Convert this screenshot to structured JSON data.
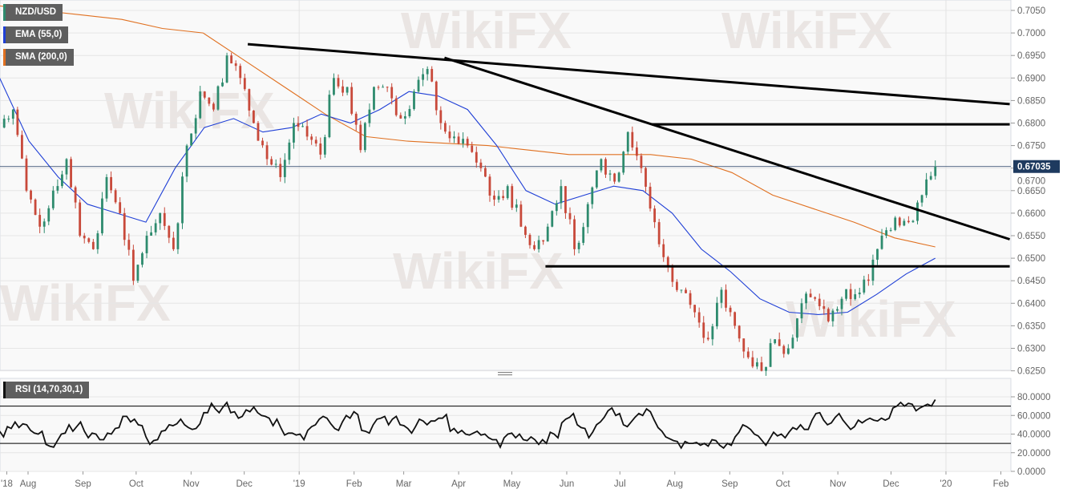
{
  "legend": {
    "symbol": {
      "label": "NZD/USD",
      "color": "#2e8b6e"
    },
    "ema": {
      "label": "EMA (55,0)",
      "color": "#1f3fd6"
    },
    "sma": {
      "label": "SMA (200,0)",
      "color": "#e07020"
    },
    "rsi": {
      "label": "RSI (14,70,30,1)",
      "color": "#111111"
    }
  },
  "watermark": "WikiFX",
  "chart_data": [
    {
      "type": "candlestick",
      "symbol": "NZD/USD",
      "x_axis": {
        "ticks": [
          {
            "label": "'18",
            "date": "2018-07-20"
          },
          {
            "label": "Aug",
            "date": "2018-08-01"
          },
          {
            "label": "Sep",
            "date": "2018-09-01"
          },
          {
            "label": "Oct",
            "date": "2018-10-01"
          },
          {
            "label": "Nov",
            "date": "2018-11-01"
          },
          {
            "label": "Dec",
            "date": "2018-12-01"
          },
          {
            "label": "'19",
            "date": "2019-01-01"
          },
          {
            "label": "Feb",
            "date": "2019-02-01"
          },
          {
            "label": "Mar",
            "date": "2019-03-01"
          },
          {
            "label": "Apr",
            "date": "2019-04-01"
          },
          {
            "label": "May",
            "date": "2019-05-01"
          },
          {
            "label": "Jun",
            "date": "2019-06-01"
          },
          {
            "label": "Jul",
            "date": "2019-07-01"
          },
          {
            "label": "Aug",
            "date": "2019-08-01"
          },
          {
            "label": "Sep",
            "date": "2019-09-01"
          },
          {
            "label": "Oct",
            "date": "2019-10-01"
          },
          {
            "label": "Nov",
            "date": "2019-11-01"
          },
          {
            "label": "Dec",
            "date": "2019-12-01"
          },
          {
            "label": "'20",
            "date": "2020-01-01"
          },
          {
            "label": "Feb",
            "date": "2020-02-01"
          }
        ]
      },
      "y_axis": {
        "range": [
          0.6205,
          0.7075
        ],
        "ticks": [
          "0.7050",
          "0.7000",
          "0.6950",
          "0.6900",
          "0.6850",
          "0.6800",
          "0.6750",
          "0.6700",
          "0.6650",
          "0.6600",
          "0.6550",
          "0.6500",
          "0.6450",
          "0.6400",
          "0.6350",
          "0.6300",
          "0.6250"
        ],
        "position": "right"
      },
      "last_price": {
        "label": "0.67035",
        "value": 0.67035,
        "color": "#1e3a5f"
      },
      "price_series": {
        "start_date": "2018-07-16",
        "end_date": "2019-12-26",
        "closes": [
          0.68,
          0.683,
          0.665,
          0.657,
          0.665,
          0.672,
          0.655,
          0.652,
          0.668,
          0.66,
          0.645,
          0.655,
          0.66,
          0.652,
          0.675,
          0.687,
          0.683,
          0.695,
          0.69,
          0.68,
          0.672,
          0.668,
          0.68,
          0.677,
          0.673,
          0.69,
          0.688,
          0.674,
          0.688,
          0.688,
          0.681,
          0.687,
          0.692,
          0.68,
          0.677,
          0.675,
          0.67,
          0.663,
          0.666,
          0.657,
          0.652,
          0.657,
          0.666,
          0.652,
          0.662,
          0.672,
          0.667,
          0.678,
          0.67,
          0.658,
          0.648,
          0.643,
          0.638,
          0.632,
          0.643,
          0.635,
          0.628,
          0.625,
          0.632,
          0.63,
          0.64,
          0.641,
          0.636,
          0.641,
          0.642,
          0.645,
          0.655,
          0.659,
          0.658,
          0.664,
          0.67035
        ]
      },
      "ema_55": {
        "start_date": "2018-07-16",
        "end_date": "2019-12-26",
        "values": [
          0.69,
          0.676,
          0.668,
          0.662,
          0.66,
          0.658,
          0.67,
          0.679,
          0.681,
          0.678,
          0.679,
          0.682,
          0.68,
          0.683,
          0.687,
          0.686,
          0.683,
          0.675,
          0.665,
          0.662,
          0.664,
          0.666,
          0.665,
          0.66,
          0.652,
          0.647,
          0.641,
          0.638,
          0.6375,
          0.638,
          0.642,
          0.6465,
          0.65
        ]
      },
      "sma_200": {
        "start_date": "2018-07-16",
        "end_date": "2019-12-26",
        "values": [
          0.706,
          0.705,
          0.704,
          0.703,
          0.701,
          0.7,
          0.694,
          0.688,
          0.682,
          0.677,
          0.676,
          0.6755,
          0.675,
          0.674,
          0.673,
          0.673,
          0.673,
          0.672,
          0.669,
          0.664,
          0.661,
          0.658,
          0.6545,
          0.6525
        ]
      },
      "trendlines": [
        {
          "from": {
            "date": "2018-12-03",
            "price": 0.6975
          },
          "to": {
            "date": "2020-02-06",
            "price": 0.6842
          }
        },
        {
          "from": {
            "date": "2019-03-24",
            "price": 0.6945
          },
          "to": {
            "date": "2020-02-06",
            "price": 0.6542
          }
        },
        {
          "from": {
            "date": "2019-07-19",
            "price": 0.6797
          },
          "to": {
            "date": "2020-02-06",
            "price": 0.6797
          }
        },
        {
          "from": {
            "date": "2019-05-20",
            "price": 0.6482
          },
          "to": {
            "date": "2020-02-06",
            "price": 0.6482
          }
        }
      ],
      "grid": true
    },
    {
      "type": "line",
      "name": "RSI (14,70,30,1)",
      "y_axis": {
        "range": [
          0,
          90
        ],
        "ticks": [
          "80.0000",
          "60.0000",
          "40.0000",
          "20.0000",
          "0.0000"
        ],
        "position": "right"
      },
      "levels": [
        70,
        30
      ],
      "start_date": "2018-07-16",
      "end_date": "2019-12-26",
      "values": [
        43,
        37,
        48,
        46,
        53,
        47,
        51,
        50,
        44,
        41,
        40,
        43,
        29,
        27,
        26,
        33,
        40,
        41,
        50,
        43,
        48,
        53,
        43,
        36,
        41,
        40,
        34,
        34,
        41,
        40,
        46,
        47,
        59,
        59,
        53,
        56,
        50,
        49,
        37,
        29,
        33,
        34,
        43,
        44,
        50,
        49,
        51,
        56,
        50,
        47,
        45,
        46,
        51,
        63,
        63,
        73,
        67,
        63,
        69,
        74,
        63,
        64,
        57,
        59,
        66,
        64,
        69,
        63,
        60,
        59,
        57,
        49,
        56,
        47,
        39,
        41,
        41,
        39,
        40,
        34,
        44,
        48,
        50,
        56,
        59,
        57,
        51,
        46,
        44,
        53,
        60,
        57,
        64,
        61,
        44,
        43,
        41,
        50,
        56,
        57,
        59,
        50,
        56,
        59,
        50,
        49,
        46,
        41,
        48,
        56,
        54,
        50,
        54,
        54,
        57,
        57,
        61,
        43,
        46,
        41,
        44,
        40,
        39,
        41,
        43,
        39,
        40,
        36,
        34,
        34,
        26,
        36,
        40,
        41,
        36,
        40,
        34,
        33,
        37,
        34,
        29,
        34,
        30,
        42,
        40,
        36,
        52,
        56,
        58,
        62,
        50,
        47,
        46,
        36,
        42,
        50,
        53,
        58,
        65,
        68,
        60,
        62,
        50,
        48,
        53,
        58,
        62,
        60,
        67,
        64,
        55,
        47,
        43,
        37,
        35,
        33,
        32,
        25,
        32,
        30,
        30,
        31,
        28,
        30,
        27,
        34,
        33,
        28,
        25,
        30,
        28,
        37,
        42,
        50,
        48,
        45,
        40,
        38,
        33,
        28,
        35,
        42,
        38,
        40,
        36,
        42,
        47,
        45,
        50,
        45,
        45,
        55,
        62,
        63,
        55,
        50,
        52,
        58,
        62,
        55,
        50,
        45,
        48,
        55,
        52,
        55,
        57,
        55,
        54,
        57,
        55,
        57,
        68,
        70,
        74,
        70,
        73,
        72,
        65,
        68,
        70,
        72,
        70,
        77
      ]
    }
  ]
}
